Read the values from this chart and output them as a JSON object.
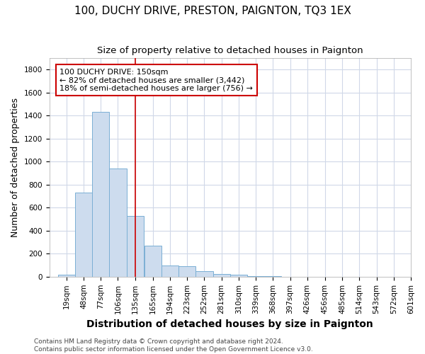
{
  "title": "100, DUCHY DRIVE, PRESTON, PAIGNTON, TQ3 1EX",
  "subtitle": "Size of property relative to detached houses in Paignton",
  "xlabel": "Distribution of detached houses by size in Paignton",
  "ylabel": "Number of detached properties",
  "bin_labels": [
    "19sqm",
    "48sqm",
    "77sqm",
    "106sqm",
    "135sqm",
    "165sqm",
    "194sqm",
    "223sqm",
    "252sqm",
    "281sqm",
    "310sqm",
    "339sqm",
    "368sqm",
    "397sqm",
    "426sqm",
    "456sqm",
    "485sqm",
    "514sqm",
    "543sqm",
    "572sqm",
    "601sqm"
  ],
  "bin_edges": [
    19,
    48,
    77,
    106,
    135,
    165,
    194,
    223,
    252,
    281,
    310,
    339,
    368,
    397,
    426,
    456,
    485,
    514,
    543,
    572,
    601
  ],
  "bar_heights": [
    20,
    730,
    1430,
    940,
    530,
    270,
    100,
    90,
    50,
    25,
    15,
    5,
    5,
    0,
    0,
    0,
    0,
    0,
    0,
    0
  ],
  "bar_color": "#cddcee",
  "bar_edgecolor": "#7aafd4",
  "property_size": 150,
  "redline_color": "#cc0000",
  "annotation_text": "100 DUCHY DRIVE: 150sqm\n← 82% of detached houses are smaller (3,442)\n18% of semi-detached houses are larger (756) →",
  "annotation_box_facecolor": "#ffffff",
  "annotation_box_edgecolor": "#cc0000",
  "ylim": [
    0,
    1900
  ],
  "yticks": [
    0,
    200,
    400,
    600,
    800,
    1000,
    1200,
    1400,
    1600,
    1800
  ],
  "footer_text": "Contains HM Land Registry data © Crown copyright and database right 2024.\nContains public sector information licensed under the Open Government Licence v3.0.",
  "plot_bg_color": "#ffffff",
  "fig_bg_color": "#ffffff",
  "grid_color": "#d0d8e8",
  "title_fontsize": 11,
  "subtitle_fontsize": 9.5,
  "axis_label_fontsize": 9,
  "tick_fontsize": 7.5,
  "footer_fontsize": 6.5,
  "annotation_fontsize": 8
}
